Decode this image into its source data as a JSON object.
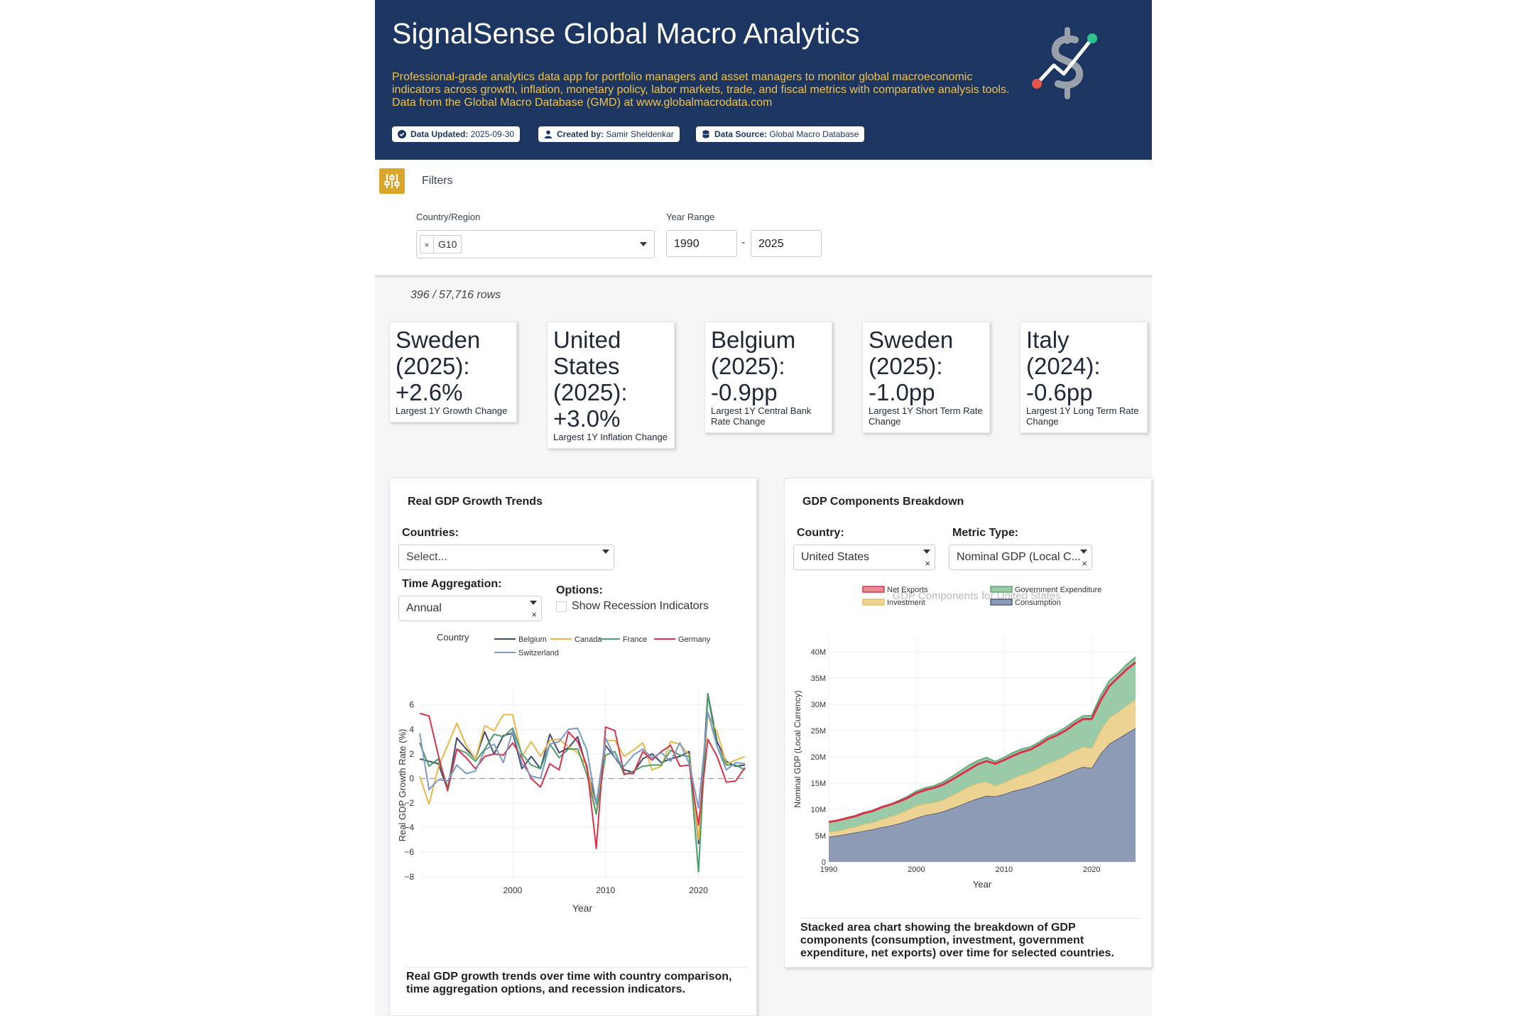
{
  "header": {
    "title": "SignalSense Global Macro Analytics",
    "description": "Professional-grade analytics data app for portfolio managers and asset managers to monitor global macroeconomic indicators across growth, inflation, monetary policy, labor markets, trade, and fiscal metrics with comparative analysis tools. Data from the Global Macro Database (GMD) at www.globalmacrodata.com",
    "badges": [
      {
        "key": "Data Updated:",
        "value": "2025-09-30",
        "icon": "check-circle-icon"
      },
      {
        "key": "Created by:",
        "value": "Samir Sheldenkar",
        "icon": "user-icon"
      },
      {
        "key": "Data Source:",
        "value": "Global Macro Database",
        "icon": "database-icon"
      }
    ],
    "logo_icon": "dollar-signal-logo",
    "colors": {
      "background": "#1c3661",
      "description": "#f0c24b",
      "accent_green": "#2ec58f",
      "accent_red": "#e5534b"
    }
  },
  "filters": {
    "title": "Filters",
    "icon": "sliders-icon",
    "country_label": "Country/Region",
    "country_chips": [
      "G10"
    ],
    "chip_remove": "×",
    "year_label": "Year Range",
    "year_from": "1990",
    "year_to": "2025",
    "year_separator": "-"
  },
  "row_count": "396 / 57,716 rows",
  "kpis": [
    {
      "value": "Sweden (2025): +2.6%",
      "label": "Largest 1Y Growth Change"
    },
    {
      "value": "United States (2025): +3.0%",
      "label": "Largest 1Y Inflation Change"
    },
    {
      "value": "Belgium (2025): -0.9pp",
      "label": "Largest 1Y Central Bank Rate Change"
    },
    {
      "value": "Sweden (2025): -1.0pp",
      "label": "Largest 1Y Short Term Rate Change"
    },
    {
      "value": "Italy (2024): -0.6pp",
      "label": "Largest 1Y Long Term Rate Change"
    }
  ],
  "gdp_growth": {
    "title": "Real GDP Growth Trends",
    "countries_label": "Countries:",
    "countries_placeholder": "Select...",
    "aggregation_label": "Time Aggregation:",
    "aggregation_value": "Annual",
    "options_label": "Options:",
    "recession_label": "Show Recession Indicators",
    "clear": "×",
    "note": "Real GDP growth trends over time with country comparison, time aggregation options, and recession indicators."
  },
  "gdp_components": {
    "title": "GDP Components Breakdown",
    "country_label": "Country:",
    "country_value": "United States",
    "metric_label": "Metric Type:",
    "metric_value": "Nominal GDP (Local C...",
    "clear": "×",
    "note": "Stacked area chart showing the breakdown of GDP components (consumption, investment, government expenditure, net exports) over time for selected countries."
  },
  "chart_data": [
    {
      "type": "line",
      "title": "",
      "legend_title": "Country",
      "xlabel": "Year",
      "ylabel": "Real GDP Growth Rate (%)",
      "xlim": [
        1990,
        2025
      ],
      "ylim": [
        -8.3,
        7.2
      ],
      "xticks": [
        2000,
        2010,
        2020
      ],
      "yticks": [
        -8,
        -6,
        -4,
        -2,
        0,
        2,
        4,
        6
      ],
      "zero_line": "dashed",
      "grid": true,
      "x": [
        1990,
        1991,
        1992,
        1993,
        1994,
        1995,
        1996,
        1997,
        1998,
        1999,
        2000,
        2001,
        2002,
        2003,
        2004,
        2005,
        2006,
        2007,
        2008,
        2009,
        2010,
        2011,
        2012,
        2013,
        2014,
        2015,
        2016,
        2017,
        2018,
        2019,
        2020,
        2021,
        2022,
        2023,
        2024,
        2025
      ],
      "series": [
        {
          "name": "Belgium",
          "color": "#3d4a72",
          "values": [
            1.6,
            1.4,
            1.2,
            -0.9,
            3.3,
            2.4,
            1.6,
            3.8,
            2.0,
            3.5,
            3.7,
            0.8,
            1.8,
            0.8,
            3.6,
            2.1,
            2.5,
            3.4,
            0.8,
            -2.0,
            2.7,
            1.7,
            0.7,
            0.5,
            1.6,
            2.0,
            1.3,
            1.6,
            1.8,
            2.2,
            -5.3,
            6.9,
            3.0,
            1.4,
            1.0,
            1.1
          ]
        },
        {
          "name": "Canada",
          "color": "#e8b84a",
          "values": [
            0.2,
            -2.1,
            0.9,
            2.7,
            4.5,
            2.7,
            1.6,
            4.3,
            3.9,
            5.2,
            5.2,
            1.8,
            3.0,
            1.8,
            3.1,
            3.2,
            2.6,
            2.1,
            1.0,
            -2.9,
            3.1,
            3.1,
            1.8,
            2.3,
            2.9,
            0.7,
            1.0,
            3.0,
            2.8,
            1.9,
            -5.0,
            5.3,
            3.8,
            1.2,
            1.5,
            1.8
          ]
        },
        {
          "name": "France",
          "color": "#4e9e6a",
          "values": [
            2.9,
            1.0,
            1.6,
            -0.7,
            2.4,
            2.1,
            1.4,
            2.4,
            3.6,
            3.4,
            4.1,
            2.0,
            1.1,
            0.8,
            2.8,
            1.7,
            2.4,
            2.4,
            0.3,
            -2.9,
            1.9,
            2.2,
            0.3,
            0.6,
            1.0,
            1.1,
            1.1,
            2.3,
            1.9,
            1.8,
            -7.6,
            6.8,
            2.6,
            1.1,
            1.1,
            0.7
          ]
        },
        {
          "name": "Germany",
          "color": "#d6344a",
          "values": [
            5.3,
            5.1,
            1.9,
            -1.0,
            2.4,
            1.7,
            0.8,
            1.8,
            2.0,
            1.9,
            2.9,
            1.7,
            0.0,
            -0.7,
            1.2,
            0.7,
            3.8,
            3.0,
            1.0,
            -5.7,
            4.2,
            3.9,
            0.4,
            0.4,
            2.2,
            1.5,
            2.2,
            2.7,
            1.0,
            1.1,
            -3.8,
            3.2,
            1.8,
            -0.3,
            -0.2,
            0.9
          ]
        },
        {
          "name": "Switzerland",
          "color": "#7b9ac4",
          "values": [
            3.7,
            -0.9,
            -0.1,
            -0.2,
            1.1,
            0.4,
            0.6,
            2.3,
            2.8,
            1.3,
            3.9,
            1.2,
            0.2,
            0.0,
            2.8,
            3.0,
            4.0,
            4.1,
            2.3,
            -2.1,
            3.3,
            1.7,
            1.0,
            1.9,
            2.4,
            1.7,
            2.1,
            1.4,
            2.9,
            1.2,
            -2.4,
            5.4,
            2.6,
            0.7,
            1.3,
            1.2
          ]
        }
      ]
    },
    {
      "type": "area",
      "stacked": true,
      "title": "GDP Components for United States",
      "xlabel": "Year",
      "ylabel": "Nominal GDP (Local Currency)",
      "xlim": [
        1990,
        2025
      ],
      "ylim": [
        0,
        43
      ],
      "xticks": [
        1990,
        2000,
        2010,
        2020
      ],
      "yticks": [
        0,
        5,
        10,
        15,
        20,
        25,
        30,
        35,
        40
      ],
      "ytick_labels": [
        "0",
        "5M",
        "10M",
        "15M",
        "20M",
        "25M",
        "30M",
        "35M",
        "40M"
      ],
      "value_unit": "M",
      "grid": true,
      "legend_position": "top",
      "x": [
        1990,
        1991,
        1992,
        1993,
        1994,
        1995,
        1996,
        1997,
        1998,
        1999,
        2000,
        2001,
        2002,
        2003,
        2004,
        2005,
        2006,
        2007,
        2008,
        2009,
        2010,
        2011,
        2012,
        2013,
        2014,
        2015,
        2016,
        2017,
        2018,
        2019,
        2020,
        2021,
        2022,
        2023,
        2024,
        2025
      ],
      "series": [
        {
          "name": "Consumption",
          "color": "#4a5b80",
          "values": [
            4.8,
            5.0,
            5.3,
            5.6,
            5.9,
            6.2,
            6.6,
            6.9,
            7.3,
            7.8,
            8.4,
            8.9,
            9.2,
            9.6,
            10.2,
            10.8,
            11.5,
            12.1,
            12.6,
            12.5,
            12.9,
            13.5,
            13.9,
            14.3,
            14.9,
            15.5,
            16.1,
            16.8,
            17.5,
            18.1,
            17.9,
            20.6,
            22.5,
            23.5,
            24.5,
            25.5
          ]
        },
        {
          "name": "Investment",
          "color": "#e5c065",
          "values": [
            1.0,
            0.9,
            1.0,
            1.1,
            1.3,
            1.3,
            1.5,
            1.7,
            1.9,
            2.1,
            2.3,
            2.2,
            2.1,
            2.2,
            2.4,
            2.7,
            2.9,
            2.9,
            2.7,
            2.0,
            2.2,
            2.4,
            2.7,
            2.8,
            3.0,
            3.3,
            3.3,
            3.4,
            3.7,
            3.8,
            3.8,
            4.4,
            5.0,
            5.0,
            5.3,
            5.4
          ]
        },
        {
          "name": "Government Expenditure",
          "color": "#5aa873",
          "values": [
            1.9,
            2.0,
            2.1,
            2.1,
            2.2,
            2.3,
            2.4,
            2.4,
            2.5,
            2.6,
            2.8,
            3.0,
            3.2,
            3.4,
            3.6,
            3.8,
            4.0,
            4.3,
            4.6,
            4.6,
            4.8,
            4.9,
            4.9,
            4.8,
            4.9,
            5.1,
            5.2,
            5.4,
            5.6,
            5.9,
            6.2,
            6.6,
            7.0,
            7.4,
            7.8,
            8.1
          ]
        },
        {
          "name": "Net Exports",
          "color": "#d6344a",
          "values": [
            -0.1,
            0.0,
            -0.1,
            -0.1,
            -0.1,
            -0.1,
            -0.1,
            -0.1,
            -0.2,
            -0.3,
            -0.4,
            -0.4,
            -0.4,
            -0.5,
            -0.6,
            -0.7,
            -0.8,
            -0.7,
            -0.7,
            -0.4,
            -0.5,
            -0.6,
            -0.6,
            -0.5,
            -0.5,
            -0.5,
            -0.5,
            -0.6,
            -0.6,
            -0.6,
            -0.7,
            -0.9,
            -1.0,
            -0.8,
            -0.9,
            -1.0
          ]
        }
      ]
    }
  ]
}
